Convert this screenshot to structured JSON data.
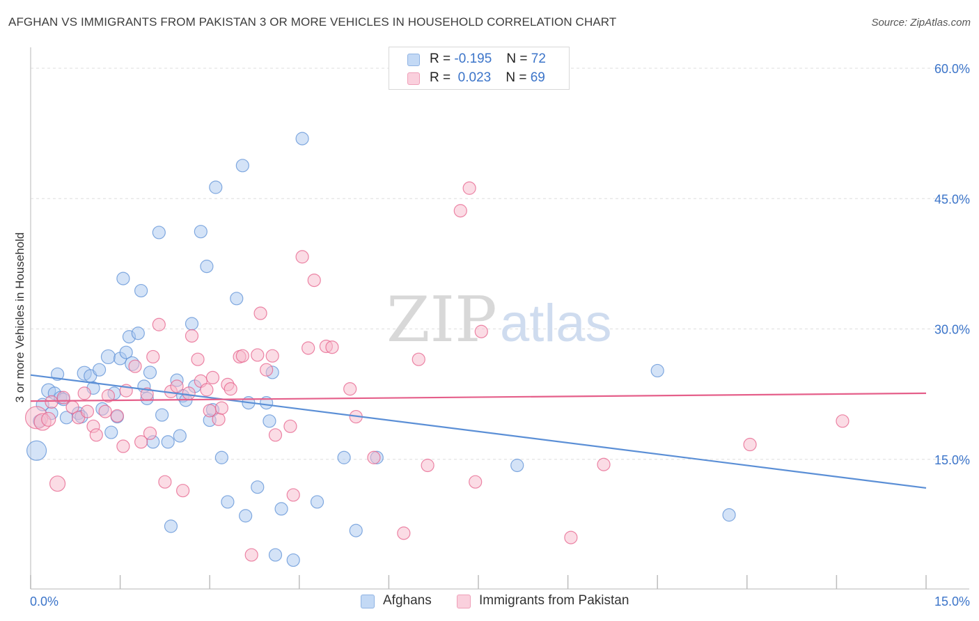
{
  "header": {
    "title": "AFGHAN VS IMMIGRANTS FROM PAKISTAN 3 OR MORE VEHICLES IN HOUSEHOLD CORRELATION CHART",
    "source": "Source: ZipAtlas.com"
  },
  "watermark": {
    "part1": "ZIP",
    "part2": "atlas"
  },
  "legend_top": {
    "rows": [
      {
        "r_label": "R =",
        "r_value": "-0.195",
        "n_label": "N =",
        "n_value": "72",
        "color": "#a9c8f0"
      },
      {
        "r_label": "R =",
        "r_value": "0.023",
        "n_label": "N =",
        "n_value": "69",
        "color": "#f7b9cc"
      }
    ]
  },
  "legend_bottom": [
    {
      "label": "Afghans",
      "color": "#a9c8f0"
    },
    {
      "label": "Immigrants from Pakistan",
      "color": "#f7b9cc"
    }
  ],
  "chart_data": {
    "type": "scatter",
    "title": "AFGHAN VS IMMIGRANTS FROM PAKISTAN 3 OR MORE VEHICLES IN HOUSEHOLD CORRELATION CHART",
    "xlabel": "",
    "ylabel": "3 or more Vehicles in Household",
    "xlim": [
      0,
      15
    ],
    "ylim": [
      0,
      60
    ],
    "x_tick_labels": [
      "0.0%",
      "15.0%"
    ],
    "y_ticks": [
      15,
      30,
      45,
      60
    ],
    "y_tick_labels": [
      "15.0%",
      "30.0%",
      "45.0%",
      "60.0%"
    ],
    "grid": true,
    "legend_position": "top-center",
    "series": [
      {
        "name": "Afghans",
        "color": "#5b8fd6",
        "fill": "#a9c8f0",
        "trend": {
          "x": [
            0,
            15
          ],
          "y": [
            24.7,
            11.7
          ]
        },
        "points": [
          [
            0.1,
            16.0,
            14
          ],
          [
            0.15,
            19.4,
            9
          ],
          [
            0.2,
            21.3,
            9
          ],
          [
            0.3,
            22.9,
            10
          ],
          [
            0.35,
            20.3,
            9
          ],
          [
            0.4,
            22.6,
            9
          ],
          [
            0.45,
            24.8,
            9
          ],
          [
            0.5,
            22.1,
            9
          ],
          [
            0.55,
            21.9,
            9
          ],
          [
            0.6,
            19.8,
            9
          ],
          [
            0.8,
            20.3,
            9
          ],
          [
            0.85,
            19.9,
            9
          ],
          [
            0.9,
            24.9,
            10
          ],
          [
            1.0,
            24.6,
            9
          ],
          [
            1.05,
            23.2,
            9
          ],
          [
            1.15,
            25.3,
            9
          ],
          [
            1.2,
            20.8,
            9
          ],
          [
            1.3,
            26.8,
            10
          ],
          [
            1.35,
            18.1,
            9
          ],
          [
            1.4,
            22.6,
            9
          ],
          [
            1.45,
            19.9,
            9
          ],
          [
            1.5,
            26.6,
            9
          ],
          [
            1.55,
            35.8,
            9
          ],
          [
            1.6,
            27.3,
            9
          ],
          [
            1.65,
            29.1,
            9
          ],
          [
            1.7,
            26.0,
            10
          ],
          [
            1.8,
            29.5,
            9
          ],
          [
            1.85,
            34.4,
            9
          ],
          [
            1.9,
            23.4,
            9
          ],
          [
            1.95,
            22.0,
            9
          ],
          [
            2.0,
            25.0,
            9
          ],
          [
            2.05,
            17.0,
            9
          ],
          [
            2.15,
            41.1,
            9
          ],
          [
            2.2,
            20.1,
            9
          ],
          [
            2.3,
            17.0,
            9
          ],
          [
            2.35,
            7.3,
            9
          ],
          [
            2.45,
            24.1,
            9
          ],
          [
            2.5,
            17.7,
            9
          ],
          [
            2.55,
            22.3,
            9
          ],
          [
            2.6,
            21.8,
            9
          ],
          [
            2.7,
            30.6,
            9
          ],
          [
            2.75,
            23.4,
            9
          ],
          [
            2.85,
            41.2,
            9
          ],
          [
            2.95,
            37.2,
            9
          ],
          [
            3.0,
            19.5,
            9
          ],
          [
            3.05,
            20.7,
            9
          ],
          [
            3.1,
            46.3,
            9
          ],
          [
            3.2,
            15.2,
            9
          ],
          [
            3.3,
            10.1,
            9
          ],
          [
            3.45,
            33.5,
            9
          ],
          [
            3.55,
            48.8,
            9
          ],
          [
            3.6,
            8.5,
            9
          ],
          [
            3.65,
            21.5,
            9
          ],
          [
            3.8,
            11.8,
            9
          ],
          [
            3.95,
            21.5,
            9
          ],
          [
            4.0,
            19.4,
            9
          ],
          [
            4.05,
            25.0,
            9
          ],
          [
            4.1,
            4.0,
            9
          ],
          [
            4.2,
            9.3,
            9
          ],
          [
            4.4,
            3.4,
            9
          ],
          [
            4.55,
            51.9,
            9
          ],
          [
            4.8,
            10.1,
            9
          ],
          [
            5.25,
            15.2,
            9
          ],
          [
            5.45,
            6.8,
            9
          ],
          [
            5.8,
            15.2,
            9
          ],
          [
            8.15,
            14.3,
            9
          ],
          [
            10.5,
            25.2,
            9
          ],
          [
            11.7,
            8.6,
            9
          ]
        ]
      },
      {
        "name": "Immigrants from Pakistan",
        "color": "#e55f8a",
        "fill": "#f7b9cc",
        "trend": {
          "x": [
            0,
            15
          ],
          "y": [
            21.7,
            22.6
          ]
        },
        "points": [
          [
            0.1,
            19.8,
            16
          ],
          [
            0.2,
            19.3,
            12
          ],
          [
            0.3,
            19.6,
            10
          ],
          [
            0.35,
            21.6,
            9
          ],
          [
            0.45,
            12.2,
            11
          ],
          [
            0.55,
            22.1,
            9
          ],
          [
            0.7,
            21.0,
            9
          ],
          [
            0.8,
            19.8,
            9
          ],
          [
            0.9,
            22.6,
            9
          ],
          [
            0.95,
            20.5,
            9
          ],
          [
            1.05,
            18.8,
            9
          ],
          [
            1.1,
            17.8,
            9
          ],
          [
            1.25,
            20.5,
            9
          ],
          [
            1.3,
            22.3,
            9
          ],
          [
            1.45,
            20.0,
            9
          ],
          [
            1.55,
            16.5,
            9
          ],
          [
            1.6,
            22.9,
            9
          ],
          [
            1.75,
            25.7,
            9
          ],
          [
            1.85,
            17.0,
            9
          ],
          [
            1.95,
            22.5,
            9
          ],
          [
            2.0,
            18.0,
            9
          ],
          [
            2.05,
            26.8,
            9
          ],
          [
            2.15,
            30.5,
            9
          ],
          [
            2.25,
            12.4,
            9
          ],
          [
            2.35,
            22.8,
            9
          ],
          [
            2.45,
            23.4,
            9
          ],
          [
            2.55,
            11.4,
            9
          ],
          [
            2.65,
            22.6,
            9
          ],
          [
            2.7,
            29.2,
            9
          ],
          [
            2.8,
            26.5,
            9
          ],
          [
            2.85,
            24.0,
            9
          ],
          [
            2.95,
            23.0,
            9
          ],
          [
            3.0,
            20.6,
            9
          ],
          [
            3.05,
            24.4,
            9
          ],
          [
            3.15,
            19.6,
            9
          ],
          [
            3.2,
            20.9,
            9
          ],
          [
            3.3,
            23.6,
            9
          ],
          [
            3.35,
            23.1,
            9
          ],
          [
            3.5,
            26.8,
            9
          ],
          [
            3.55,
            26.9,
            9
          ],
          [
            3.7,
            4.0,
            9
          ],
          [
            3.8,
            27.0,
            9
          ],
          [
            3.85,
            31.8,
            9
          ],
          [
            3.95,
            25.3,
            9
          ],
          [
            4.05,
            26.9,
            9
          ],
          [
            4.1,
            17.8,
            9
          ],
          [
            4.35,
            18.8,
            9
          ],
          [
            4.4,
            10.9,
            9
          ],
          [
            4.55,
            38.3,
            9
          ],
          [
            4.65,
            27.8,
            9
          ],
          [
            4.75,
            35.6,
            9
          ],
          [
            4.95,
            28.0,
            9
          ],
          [
            5.05,
            27.9,
            9
          ],
          [
            5.35,
            23.1,
            9
          ],
          [
            5.45,
            19.9,
            9
          ],
          [
            5.75,
            15.2,
            9
          ],
          [
            6.25,
            6.5,
            9
          ],
          [
            6.5,
            26.5,
            9
          ],
          [
            6.65,
            14.3,
            9
          ],
          [
            7.2,
            43.6,
            9
          ],
          [
            7.35,
            46.2,
            9
          ],
          [
            7.45,
            12.4,
            9
          ],
          [
            7.55,
            29.7,
            9
          ],
          [
            9.05,
            6.0,
            9
          ],
          [
            9.6,
            14.4,
            9
          ],
          [
            12.05,
            16.7,
            9
          ],
          [
            13.6,
            19.4,
            9
          ]
        ]
      }
    ]
  }
}
